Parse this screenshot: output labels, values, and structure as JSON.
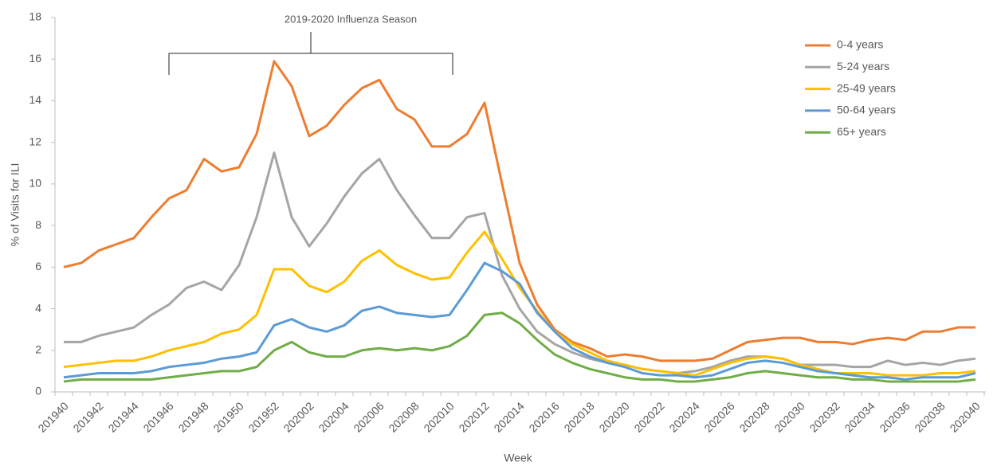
{
  "chart_data": {
    "type": "line",
    "annotation": "2019-2020 Influenza Season",
    "x_label": "Week",
    "y_label": "% of Visits for ILI",
    "categories": [
      "201940",
      null,
      "201942",
      null,
      "201944",
      null,
      "201946",
      null,
      "201948",
      null,
      "201950",
      null,
      "201952",
      null,
      "202002",
      null,
      "202004",
      null,
      "202006",
      null,
      "202008",
      null,
      "202010",
      null,
      "202012",
      null,
      "202014",
      null,
      "202016",
      null,
      "202018",
      null,
      "202020",
      null,
      "202022",
      null,
      "202024",
      null,
      "202026",
      null,
      "202028",
      null,
      "202030",
      null,
      "202032",
      null,
      "202034",
      null,
      "202036",
      null,
      "202038",
      null,
      "202040"
    ],
    "series": [
      {
        "name": "0-4 years",
        "color": "#ED7D31",
        "values": [
          6.0,
          6.2,
          6.8,
          7.1,
          7.4,
          8.4,
          9.3,
          9.7,
          11.2,
          10.6,
          10.8,
          12.4,
          15.9,
          14.7,
          12.3,
          12.8,
          13.8,
          14.6,
          15.0,
          13.6,
          13.1,
          11.8,
          11.8,
          12.4,
          13.9,
          10.0,
          6.2,
          4.2,
          3.0,
          2.4,
          2.1,
          1.7,
          1.8,
          1.7,
          1.5,
          1.5,
          1.5,
          1.6,
          2.0,
          2.4,
          2.5,
          2.6,
          2.6,
          2.4,
          2.4,
          2.3,
          2.5,
          2.6,
          2.5,
          2.9,
          2.9,
          3.1,
          3.1
        ]
      },
      {
        "name": "5-24 years",
        "color": "#A5A5A5",
        "values": [
          2.4,
          2.4,
          2.7,
          2.9,
          3.1,
          3.7,
          4.2,
          5.0,
          5.3,
          4.9,
          6.1,
          8.4,
          11.5,
          8.4,
          7.0,
          8.1,
          9.4,
          10.5,
          11.2,
          9.7,
          8.5,
          7.4,
          7.4,
          8.4,
          8.6,
          5.6,
          4.0,
          2.9,
          2.3,
          1.9,
          1.6,
          1.4,
          1.3,
          1.1,
          1.0,
          0.9,
          1.0,
          1.2,
          1.5,
          1.7,
          1.7,
          1.6,
          1.3,
          1.3,
          1.3,
          1.2,
          1.2,
          1.5,
          1.3,
          1.4,
          1.3,
          1.5,
          1.6
        ]
      },
      {
        "name": "25-49 years",
        "color": "#FFC000",
        "values": [
          1.2,
          1.3,
          1.4,
          1.5,
          1.5,
          1.7,
          2.0,
          2.2,
          2.4,
          2.8,
          3.0,
          3.7,
          5.9,
          5.9,
          5.1,
          4.8,
          5.3,
          6.3,
          6.8,
          6.1,
          5.7,
          5.4,
          5.5,
          6.7,
          7.7,
          6.4,
          5.0,
          3.9,
          2.9,
          2.3,
          1.9,
          1.5,
          1.3,
          1.1,
          1.0,
          0.9,
          0.8,
          1.1,
          1.4,
          1.6,
          1.7,
          1.6,
          1.3,
          1.1,
          0.9,
          0.9,
          0.9,
          0.8,
          0.8,
          0.8,
          0.9,
          0.9,
          1.0
        ]
      },
      {
        "name": "50-64 years",
        "color": "#5B9BD5",
        "values": [
          0.7,
          0.8,
          0.9,
          0.9,
          0.9,
          1.0,
          1.2,
          1.3,
          1.4,
          1.6,
          1.7,
          1.9,
          3.2,
          3.5,
          3.1,
          2.9,
          3.2,
          3.9,
          4.1,
          3.8,
          3.7,
          3.6,
          3.7,
          4.9,
          6.2,
          5.8,
          5.2,
          3.8,
          2.9,
          2.1,
          1.7,
          1.4,
          1.2,
          0.9,
          0.8,
          0.8,
          0.7,
          0.8,
          1.1,
          1.4,
          1.5,
          1.4,
          1.2,
          1.0,
          0.9,
          0.8,
          0.7,
          0.7,
          0.6,
          0.7,
          0.7,
          0.7,
          0.9
        ]
      },
      {
        "name": "65+ years",
        "color": "#70AD47",
        "values": [
          0.5,
          0.6,
          0.6,
          0.6,
          0.6,
          0.6,
          0.7,
          0.8,
          0.9,
          1.0,
          1.0,
          1.2,
          2.0,
          2.4,
          1.9,
          1.7,
          1.7,
          2.0,
          2.1,
          2.0,
          2.1,
          2.0,
          2.2,
          2.7,
          3.7,
          3.8,
          3.3,
          2.5,
          1.8,
          1.4,
          1.1,
          0.9,
          0.7,
          0.6,
          0.6,
          0.5,
          0.5,
          0.6,
          0.7,
          0.9,
          1.0,
          0.9,
          0.8,
          0.7,
          0.7,
          0.6,
          0.6,
          0.5,
          0.5,
          0.5,
          0.5,
          0.5,
          0.6
        ]
      }
    ],
    "ylim": [
      0,
      18
    ],
    "yticks": [
      0,
      2,
      4,
      6,
      8,
      10,
      12,
      14,
      16,
      18
    ],
    "grid": false,
    "legend": "upper right"
  }
}
